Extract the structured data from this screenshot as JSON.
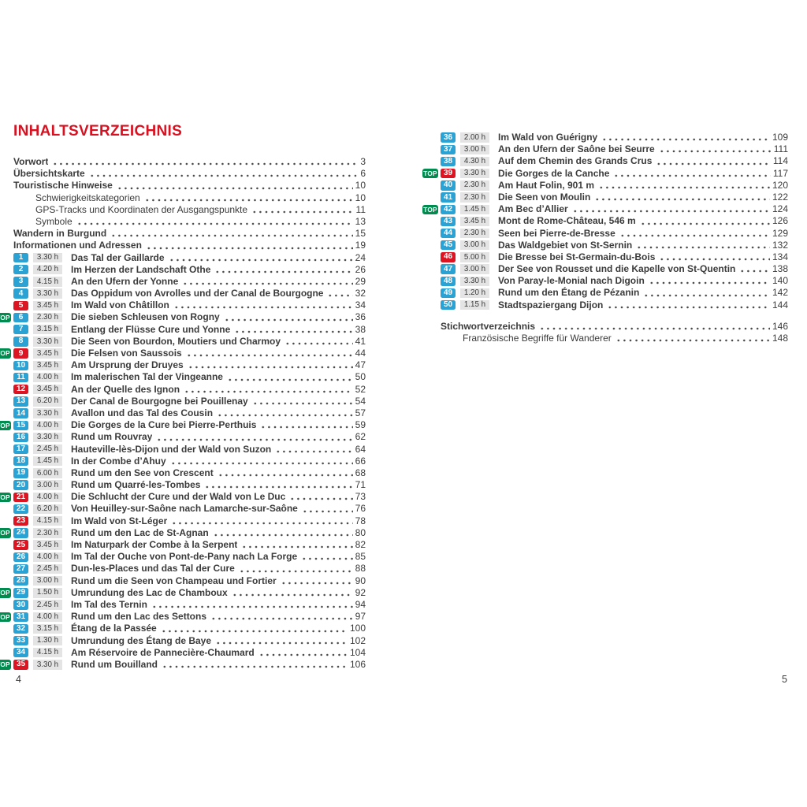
{
  "colors": {
    "header_red": "#d8101f",
    "badge_red": "#dd1522",
    "badge_blue": "#2ba2d4",
    "badge_green": "#008c4f",
    "chip_gray": "#e4e4e4",
    "text": "#3b3b3b",
    "dots": "#4a4a4a"
  },
  "badges": {
    "top_label": "TOP"
  },
  "left_page": {
    "heading": "INHALTSVERZEICHNIS",
    "folio": "4",
    "front_matter": [
      {
        "label": "Vorwort",
        "page": "3",
        "bold": true
      },
      {
        "label": "Übersichtskarte",
        "page": "6",
        "bold": true
      },
      {
        "label": "Touristische Hinweise",
        "page": "10",
        "bold": true
      },
      {
        "label": "Schwierigkeitskategorien",
        "page": "10",
        "indent": true
      },
      {
        "label": "GPS-Tracks und Koordinaten der Ausgangspunkte",
        "page": "11",
        "indent": true
      },
      {
        "label": "Symbole",
        "page": "13",
        "indent": true
      },
      {
        "label": "Wandern in Burgund",
        "page": "15",
        "bold": true
      },
      {
        "label": "Informationen und Adressen",
        "page": "19",
        "bold": true
      }
    ],
    "tours": [
      {
        "num": "1",
        "badge": "blue",
        "top": false,
        "duration": "3.30 h",
        "title": "Das Tal der Gaillarde",
        "page": "24"
      },
      {
        "num": "2",
        "badge": "blue",
        "top": false,
        "duration": "4.20 h",
        "title": "Im Herzen der Landschaft Othe",
        "page": "26"
      },
      {
        "num": "3",
        "badge": "blue",
        "top": false,
        "duration": "4.15 h",
        "title": "An den Ufern der Yonne",
        "page": "29"
      },
      {
        "num": "4",
        "badge": "blue",
        "top": false,
        "duration": "3.30 h",
        "title": "Das Oppidum von Avrolles und der Canal de Bourgogne",
        "page": "32"
      },
      {
        "num": "5",
        "badge": "red",
        "top": false,
        "duration": "3.45 h",
        "title": "Im Wald von Châtillon",
        "page": "34"
      },
      {
        "num": "6",
        "badge": "blue",
        "top": true,
        "duration": "2.30 h",
        "title": "Die sieben Schleusen von Rogny",
        "page": "36"
      },
      {
        "num": "7",
        "badge": "blue",
        "top": false,
        "duration": "3.15 h",
        "title": "Entlang der Flüsse Cure und Yonne",
        "page": "38"
      },
      {
        "num": "8",
        "badge": "blue",
        "top": false,
        "duration": "3.30 h",
        "title": "Die Seen von Bourdon, Moutiers und Charmoy",
        "page": "41"
      },
      {
        "num": "9",
        "badge": "red",
        "top": true,
        "duration": "3.45 h",
        "title": "Die Felsen von Saussois",
        "page": "44"
      },
      {
        "num": "10",
        "badge": "blue",
        "top": false,
        "duration": "3.45 h",
        "title": "Am Ursprung der Druyes",
        "page": "47"
      },
      {
        "num": "11",
        "badge": "blue",
        "top": false,
        "duration": "4.00 h",
        "title": "Im malerischen Tal der Vingeanne",
        "page": "50"
      },
      {
        "num": "12",
        "badge": "red",
        "top": false,
        "duration": "3.45 h",
        "title": "An der Quelle des Ignon",
        "page": "52"
      },
      {
        "num": "13",
        "badge": "blue",
        "top": false,
        "duration": "6.20 h",
        "title": "Der Canal de Bourgogne bei Pouillenay",
        "page": "54"
      },
      {
        "num": "14",
        "badge": "blue",
        "top": false,
        "duration": "3.30 h",
        "title": "Avallon und das Tal des Cousin",
        "page": "57"
      },
      {
        "num": "15",
        "badge": "blue",
        "top": true,
        "duration": "4.00 h",
        "title": "Die Gorges de la Cure bei Pierre-Perthuis",
        "page": "59"
      },
      {
        "num": "16",
        "badge": "blue",
        "top": false,
        "duration": "3.30 h",
        "title": "Rund um Rouvray",
        "page": "62"
      },
      {
        "num": "17",
        "badge": "blue",
        "top": false,
        "duration": "2.45 h",
        "title": "Hauteville-lès-Dijon und der Wald von Suzon",
        "page": "64"
      },
      {
        "num": "18",
        "badge": "blue",
        "top": false,
        "duration": "1.45 h",
        "title": "In der Combe d’Ahuy",
        "page": "66"
      },
      {
        "num": "19",
        "badge": "blue",
        "top": false,
        "duration": "6.00 h",
        "title": "Rund um den See von Crescent",
        "page": "68"
      },
      {
        "num": "20",
        "badge": "blue",
        "top": false,
        "duration": "3.00 h",
        "title": "Rund um Quarré-les-Tombes",
        "page": "71"
      },
      {
        "num": "21",
        "badge": "red",
        "top": true,
        "duration": "4.00 h",
        "title": "Die Schlucht der Cure und der Wald von Le Duc",
        "page": "73"
      },
      {
        "num": "22",
        "badge": "blue",
        "top": false,
        "duration": "6.20 h",
        "title": "Von Heuilley-sur-Saône nach Lamarche-sur-Saône",
        "page": "76"
      },
      {
        "num": "23",
        "badge": "red",
        "top": false,
        "duration": "4.15 h",
        "title": "Im Wald von St-Léger",
        "page": "78"
      },
      {
        "num": "24",
        "badge": "blue",
        "top": true,
        "duration": "2.30 h",
        "title": "Rund um den Lac de St-Agnan",
        "page": "80"
      },
      {
        "num": "25",
        "badge": "red",
        "top": false,
        "duration": "3.45 h",
        "title": "Im Naturpark der Combe à la Serpent",
        "page": "82"
      },
      {
        "num": "26",
        "badge": "blue",
        "top": false,
        "duration": "4.00 h",
        "title": "Im Tal der Ouche von Pont-de-Pany nach La Forge",
        "page": "85"
      },
      {
        "num": "27",
        "badge": "blue",
        "top": false,
        "duration": "2.45 h",
        "title": "Dun-les-Places und das Tal der Cure",
        "page": "88"
      },
      {
        "num": "28",
        "badge": "blue",
        "top": false,
        "duration": "3.00 h",
        "title": "Rund um die Seen von Champeau und Fortier",
        "page": "90"
      },
      {
        "num": "29",
        "badge": "blue",
        "top": true,
        "duration": "1.50 h",
        "title": "Umrundung des Lac de Chamboux",
        "page": "92"
      },
      {
        "num": "30",
        "badge": "blue",
        "top": false,
        "duration": "2.45 h",
        "title": "Im Tal des Ternin",
        "page": "94"
      },
      {
        "num": "31",
        "badge": "blue",
        "top": true,
        "duration": "4.00 h",
        "title": "Rund um den Lac des Settons",
        "page": "97"
      },
      {
        "num": "32",
        "badge": "blue",
        "top": false,
        "duration": "3.15 h",
        "title": "Étang de la Passée",
        "page": "100"
      },
      {
        "num": "33",
        "badge": "blue",
        "top": false,
        "duration": "1.30 h",
        "title": "Umrundung des Étang de Baye",
        "page": "102"
      },
      {
        "num": "34",
        "badge": "blue",
        "top": false,
        "duration": "4.15 h",
        "title": "Am Réservoire de Pannecière-Chaumard",
        "page": "104"
      },
      {
        "num": "35",
        "badge": "red",
        "top": true,
        "duration": "3.30 h",
        "title": "Rund um Bouilland",
        "page": "106"
      }
    ]
  },
  "right_page": {
    "folio": "5",
    "tours": [
      {
        "num": "36",
        "badge": "blue",
        "top": false,
        "duration": "2.00 h",
        "title": "Im Wald von Guérigny",
        "page": "109"
      },
      {
        "num": "37",
        "badge": "blue",
        "top": false,
        "duration": "3.00 h",
        "title": "An den Ufern der Saône bei Seurre",
        "page": "111"
      },
      {
        "num": "38",
        "badge": "blue",
        "top": false,
        "duration": "4.30 h",
        "title": "Auf dem Chemin des Grands Crus",
        "page": "114"
      },
      {
        "num": "39",
        "badge": "red",
        "top": true,
        "duration": "3.30 h",
        "title": "Die Gorges de la Canche",
        "page": "117"
      },
      {
        "num": "40",
        "badge": "blue",
        "top": false,
        "duration": "2.30 h",
        "title": "Am Haut Folin, 901 m",
        "page": "120"
      },
      {
        "num": "41",
        "badge": "blue",
        "top": false,
        "duration": "2.30 h",
        "title": "Die Seen von Moulin",
        "page": "122"
      },
      {
        "num": "42",
        "badge": "blue",
        "top": true,
        "duration": "1.45 h",
        "title": "Am Bec d’Allier",
        "page": "124"
      },
      {
        "num": "43",
        "badge": "blue",
        "top": false,
        "duration": "3.45 h",
        "title": "Mont de Rome-Château, 546 m",
        "page": "126"
      },
      {
        "num": "44",
        "badge": "blue",
        "top": false,
        "duration": "2.30 h",
        "title": "Seen bei Pierre-de-Bresse",
        "page": "129"
      },
      {
        "num": "45",
        "badge": "blue",
        "top": false,
        "duration": "3.00 h",
        "title": "Das Waldgebiet von St-Sernin",
        "page": "132"
      },
      {
        "num": "46",
        "badge": "red",
        "top": false,
        "duration": "5.00 h",
        "title": "Die Bresse bei St-Germain-du-Bois",
        "page": "134"
      },
      {
        "num": "47",
        "badge": "blue",
        "top": false,
        "duration": "3.00 h",
        "title": "Der See von Rousset und die Kapelle von St-Quentin",
        "page": "138"
      },
      {
        "num": "48",
        "badge": "blue",
        "top": false,
        "duration": "3.30 h",
        "title": "Von Paray-le-Monial nach Digoin",
        "page": "140"
      },
      {
        "num": "49",
        "badge": "blue",
        "top": false,
        "duration": "1.20 h",
        "title": "Rund um den Étang de Pézanin",
        "page": "142"
      },
      {
        "num": "50",
        "badge": "blue",
        "top": false,
        "duration": "1.15 h",
        "title": "Stadtspaziergang Dijon",
        "page": "144"
      }
    ],
    "back_matter": [
      {
        "label": "Stichwortverzeichnis",
        "page": "146",
        "bold": true
      },
      {
        "label": "Französische Begriffe für Wanderer",
        "page": "148",
        "indent": true
      }
    ]
  }
}
